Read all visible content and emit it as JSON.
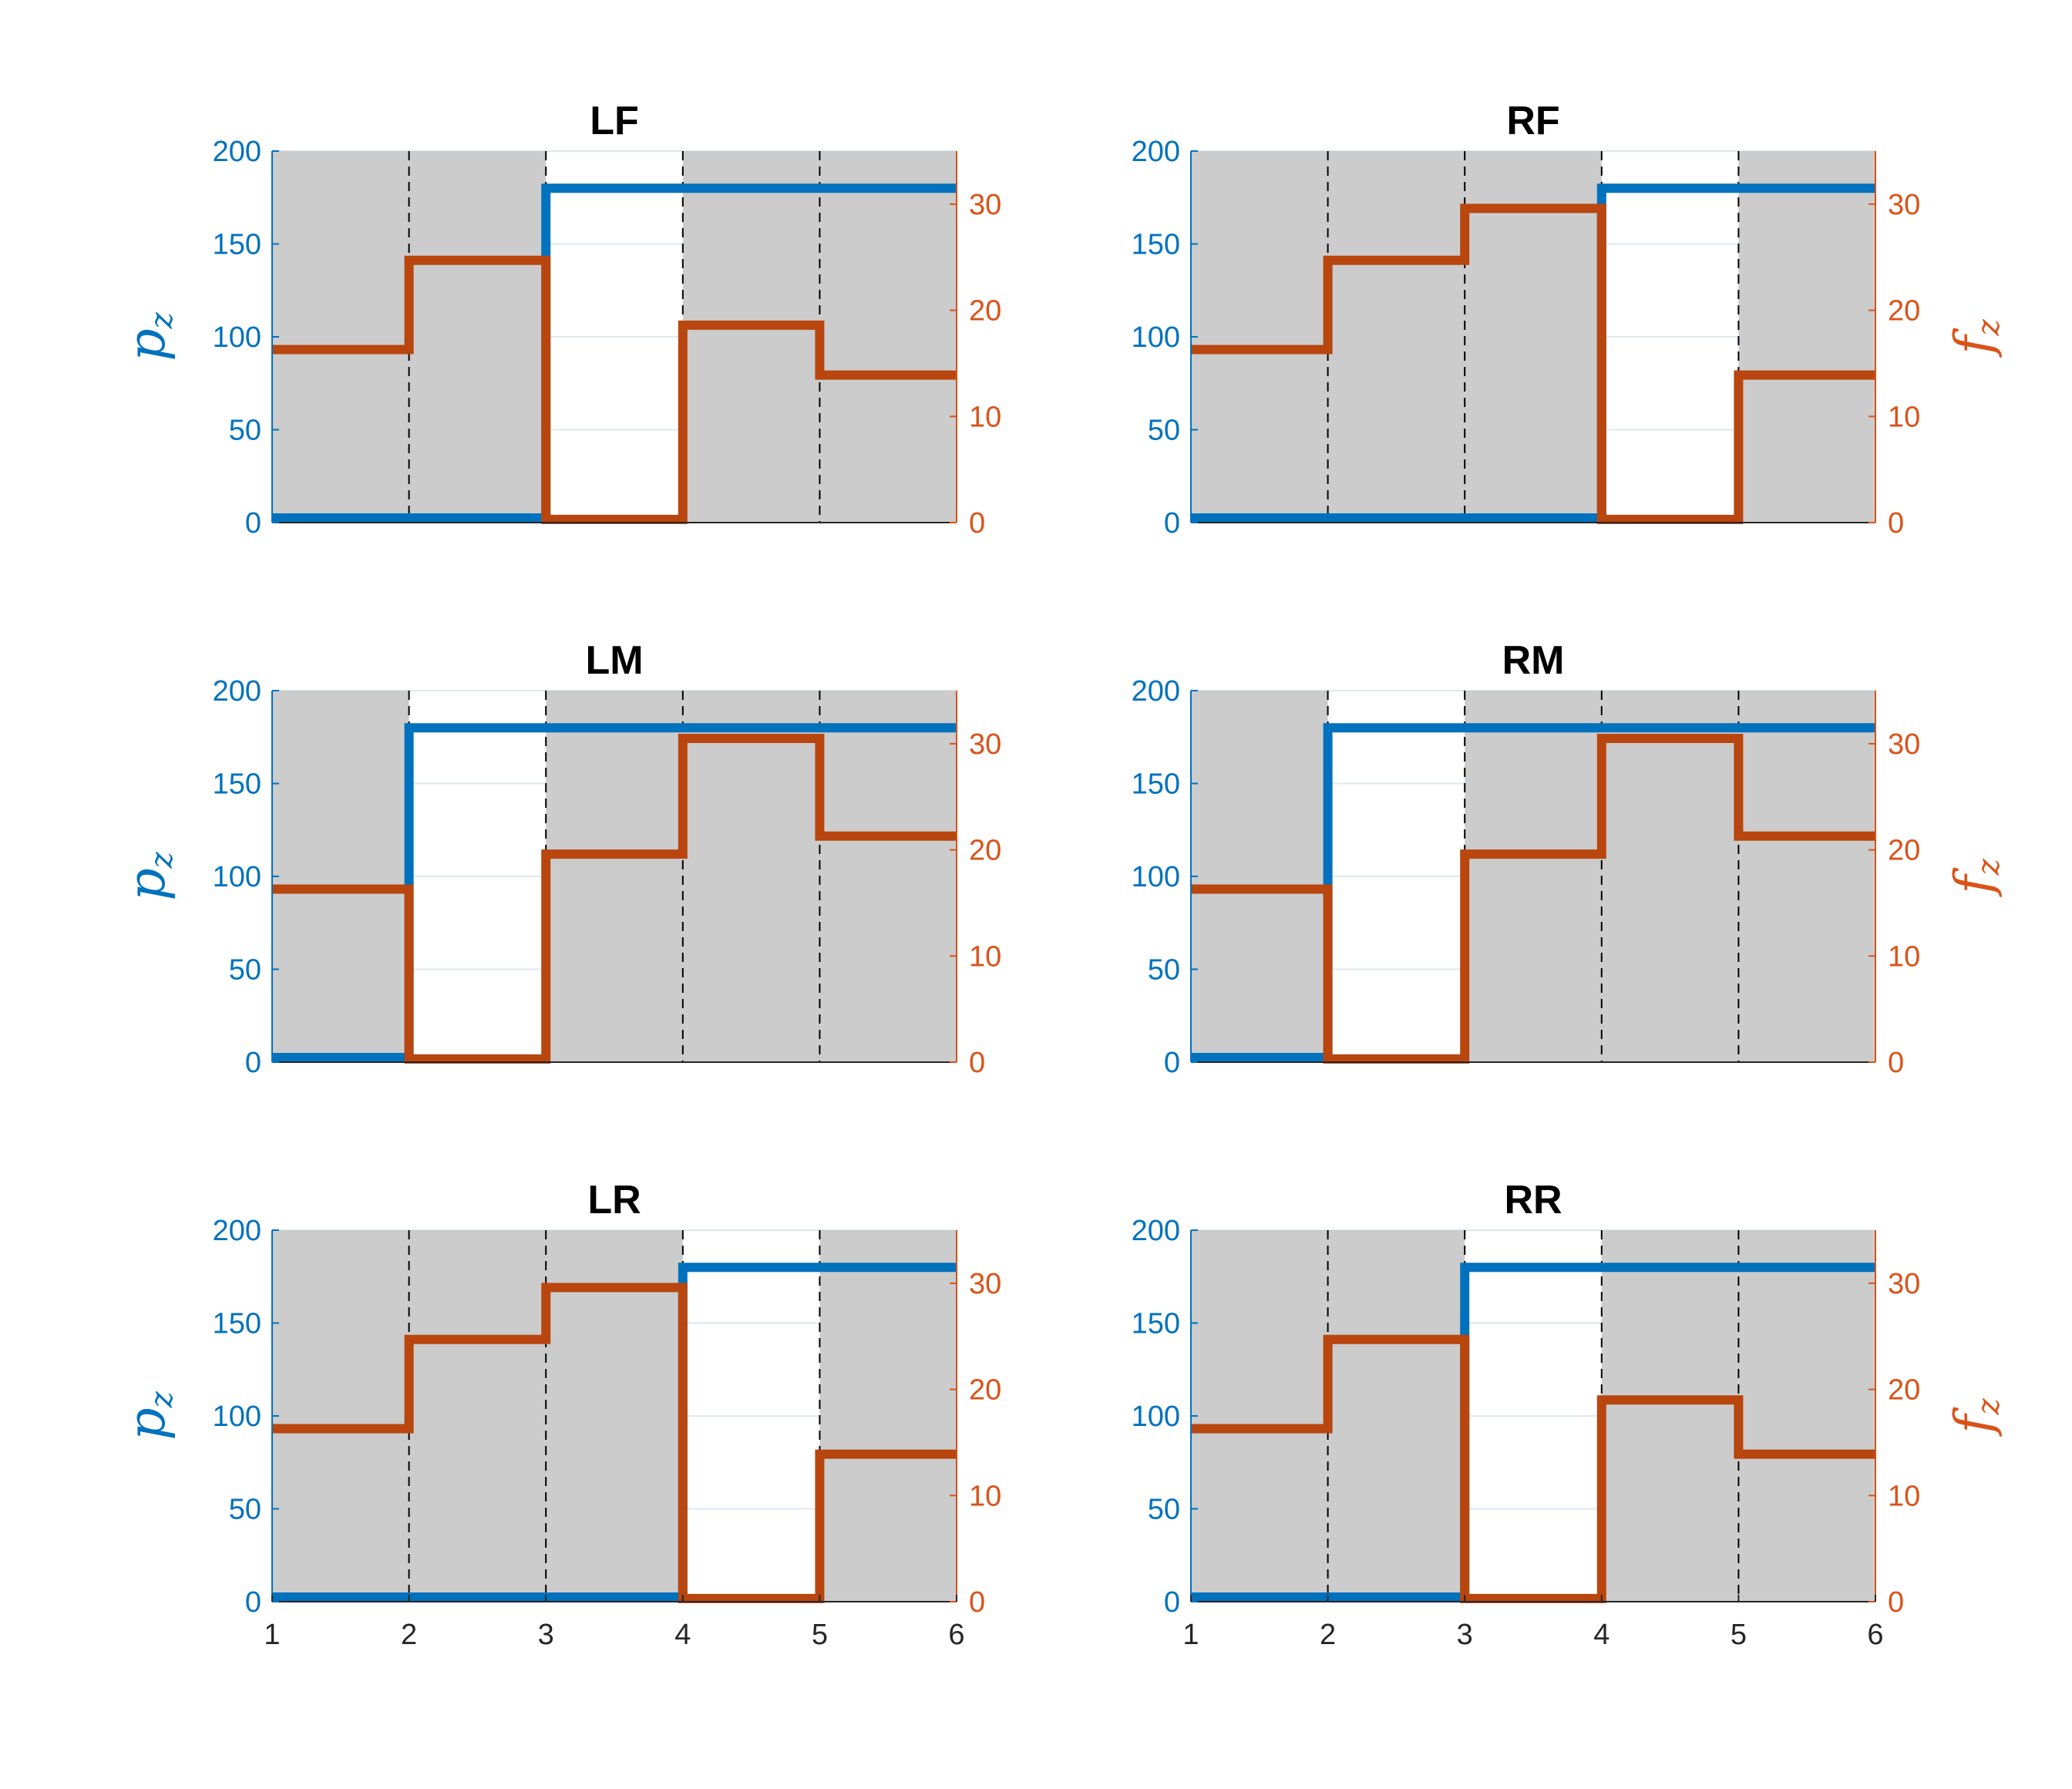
{
  "chart_data": [
    {
      "type": "line",
      "title": "LF",
      "ylabel_left": "p",
      "ylabel_left_sub": "z",
      "ylabel_right": "",
      "ylabel_right_sub": "",
      "xlim": [
        1,
        6
      ],
      "ylim_left": [
        0,
        200
      ],
      "ylim_right": [
        0,
        35
      ],
      "show_xticks": false,
      "stance_intervals": [
        [
          1,
          3
        ],
        [
          4,
          6
        ]
      ],
      "series": [
        {
          "axis": "left",
          "values": [
            [
              1,
              2.5
            ],
            [
              3,
              2.5
            ],
            [
              3,
              180
            ],
            [
              6,
              180
            ]
          ]
        },
        {
          "axis": "right",
          "values": [
            [
              1,
              16.3
            ],
            [
              2,
              16.3
            ],
            [
              2,
              24.7
            ],
            [
              3,
              24.7
            ],
            [
              3,
              0.3
            ],
            [
              4,
              0.3
            ],
            [
              4,
              18.6
            ],
            [
              5,
              18.6
            ],
            [
              5,
              13.9
            ],
            [
              6,
              13.9
            ]
          ]
        }
      ]
    },
    {
      "type": "line",
      "title": "RF",
      "ylabel_left": "",
      "ylabel_left_sub": "",
      "ylabel_right": "f",
      "ylabel_right_sub": "z",
      "xlim": [
        1,
        6
      ],
      "ylim_left": [
        0,
        200
      ],
      "ylim_right": [
        0,
        35
      ],
      "show_xticks": false,
      "stance_intervals": [
        [
          1,
          4
        ],
        [
          5,
          6
        ]
      ],
      "series": [
        {
          "axis": "left",
          "values": [
            [
              1,
              2.5
            ],
            [
              4,
              2.5
            ],
            [
              4,
              180
            ],
            [
              6,
              180
            ]
          ]
        },
        {
          "axis": "right",
          "values": [
            [
              1,
              16.3
            ],
            [
              2,
              16.3
            ],
            [
              2,
              24.7
            ],
            [
              3,
              24.7
            ],
            [
              3,
              29.6
            ],
            [
              4,
              29.6
            ],
            [
              4,
              0.3
            ],
            [
              5,
              0.3
            ],
            [
              5,
              13.9
            ],
            [
              6,
              13.9
            ]
          ]
        }
      ]
    },
    {
      "type": "line",
      "title": "LM",
      "ylabel_left": "p",
      "ylabel_left_sub": "z",
      "ylabel_right": "",
      "ylabel_right_sub": "",
      "xlim": [
        1,
        6
      ],
      "ylim_left": [
        0,
        200
      ],
      "ylim_right": [
        0,
        35
      ],
      "show_xticks": false,
      "stance_intervals": [
        [
          1,
          2
        ],
        [
          3,
          6
        ]
      ],
      "series": [
        {
          "axis": "left",
          "values": [
            [
              1,
              2.5
            ],
            [
              2,
              2.5
            ],
            [
              2,
              180
            ],
            [
              6,
              180
            ]
          ]
        },
        {
          "axis": "right",
          "values": [
            [
              1,
              16.3
            ],
            [
              2,
              16.3
            ],
            [
              2,
              0.3
            ],
            [
              3,
              0.3
            ],
            [
              3,
              19.6
            ],
            [
              4,
              19.6
            ],
            [
              4,
              30.5
            ],
            [
              5,
              30.5
            ],
            [
              5,
              21.3
            ],
            [
              6,
              21.3
            ]
          ]
        }
      ]
    },
    {
      "type": "line",
      "title": "RM",
      "ylabel_left": "",
      "ylabel_left_sub": "",
      "ylabel_right": "f",
      "ylabel_right_sub": "z",
      "xlim": [
        1,
        6
      ],
      "ylim_left": [
        0,
        200
      ],
      "ylim_right": [
        0,
        35
      ],
      "show_xticks": false,
      "stance_intervals": [
        [
          1,
          2
        ],
        [
          3,
          6
        ]
      ],
      "series": [
        {
          "axis": "left",
          "values": [
            [
              1,
              2.5
            ],
            [
              2,
              2.5
            ],
            [
              2,
              180
            ],
            [
              6,
              180
            ]
          ]
        },
        {
          "axis": "right",
          "values": [
            [
              1,
              16.3
            ],
            [
              2,
              16.3
            ],
            [
              2,
              0.3
            ],
            [
              3,
              0.3
            ],
            [
              3,
              19.6
            ],
            [
              4,
              19.6
            ],
            [
              4,
              30.5
            ],
            [
              5,
              30.5
            ],
            [
              5,
              21.3
            ],
            [
              6,
              21.3
            ]
          ]
        }
      ]
    },
    {
      "type": "line",
      "title": "LR",
      "ylabel_left": "p",
      "ylabel_left_sub": "z",
      "ylabel_right": "",
      "ylabel_right_sub": "",
      "xlim": [
        1,
        6
      ],
      "ylim_left": [
        0,
        200
      ],
      "ylim_right": [
        0,
        35
      ],
      "show_xticks": true,
      "stance_intervals": [
        [
          1,
          4
        ],
        [
          5,
          6
        ]
      ],
      "series": [
        {
          "axis": "left",
          "values": [
            [
              1,
              2.5
            ],
            [
              4,
              2.5
            ],
            [
              4,
              180
            ],
            [
              6,
              180
            ]
          ]
        },
        {
          "axis": "right",
          "values": [
            [
              1,
              16.3
            ],
            [
              2,
              16.3
            ],
            [
              2,
              24.7
            ],
            [
              3,
              24.7
            ],
            [
              3,
              29.6
            ],
            [
              4,
              29.6
            ],
            [
              4,
              0.3
            ],
            [
              5,
              0.3
            ],
            [
              5,
              13.9
            ],
            [
              6,
              13.9
            ]
          ]
        }
      ]
    },
    {
      "type": "line",
      "title": "RR",
      "ylabel_left": "",
      "ylabel_left_sub": "",
      "ylabel_right": "f",
      "ylabel_right_sub": "z",
      "xlim": [
        1,
        6
      ],
      "ylim_left": [
        0,
        200
      ],
      "ylim_right": [
        0,
        35
      ],
      "show_xticks": true,
      "stance_intervals": [
        [
          1,
          3
        ],
        [
          4,
          6
        ]
      ],
      "series": [
        {
          "axis": "left",
          "values": [
            [
              1,
              2.5
            ],
            [
              3,
              2.5
            ],
            [
              3,
              180
            ],
            [
              6,
              180
            ]
          ]
        },
        {
          "axis": "right",
          "values": [
            [
              1,
              16.3
            ],
            [
              2,
              16.3
            ],
            [
              2,
              24.7
            ],
            [
              3,
              24.7
            ],
            [
              3,
              0.3
            ],
            [
              4,
              0.3
            ],
            [
              4,
              19
            ],
            [
              5,
              19
            ],
            [
              5,
              13.9
            ],
            [
              6,
              13.9
            ]
          ]
        }
      ]
    }
  ],
  "axes": {
    "left_ticks": [
      0,
      50,
      100,
      150,
      200
    ],
    "right_ticks": [
      0,
      10,
      20,
      30
    ],
    "x_ticks": [
      1,
      2,
      3,
      4,
      5,
      6
    ],
    "vertical_dividers": [
      2,
      3,
      4,
      5
    ]
  },
  "colors": {
    "left_series": "#0072BD",
    "right_series": "#B8460E",
    "left_axis": "#0072BD",
    "right_axis": "#D95319",
    "stance_fill": "#CCCCCC",
    "grid": "#DCE8F2",
    "divider": "#000000"
  }
}
